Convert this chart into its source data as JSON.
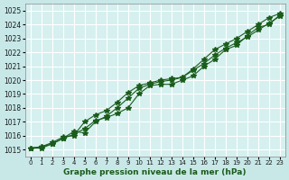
{
  "x": [
    0,
    1,
    2,
    3,
    4,
    5,
    6,
    7,
    8,
    9,
    10,
    11,
    12,
    13,
    14,
    15,
    16,
    17,
    18,
    19,
    20,
    21,
    22,
    23
  ],
  "line1": [
    1015.1,
    1015.1,
    1015.4,
    1015.8,
    1016.1,
    1016.5,
    1017.1,
    1017.3,
    1017.6,
    1018.0,
    1019.0,
    1019.6,
    1019.7,
    1019.7,
    1020.0,
    1020.3,
    1021.0,
    1021.5,
    1022.2,
    1022.5,
    1023.2,
    1023.8,
    1024.0,
    1024.7
  ],
  "line2": [
    1015.1,
    1015.2,
    1015.5,
    1015.9,
    1016.0,
    1017.0,
    1017.5,
    1017.8,
    1018.4,
    1019.1,
    1019.6,
    1019.8,
    1020.0,
    1020.1,
    1020.2,
    1020.8,
    1021.5,
    1022.2,
    1022.6,
    1023.0,
    1023.5,
    1024.0,
    1024.5,
    1024.8
  ],
  "line3": [
    1015.1,
    1015.2,
    1015.4,
    1015.8,
    1016.3,
    1016.2,
    1017.0,
    1017.4,
    1018.0,
    1018.7,
    1019.4,
    1019.7,
    1019.9,
    1020.0,
    1020.2,
    1020.7,
    1021.2,
    1021.8,
    1022.3,
    1022.7,
    1023.1,
    1023.6,
    1024.1,
    1024.6
  ],
  "line_color": "#1a5c1a",
  "marker": "*",
  "bg_plot": "#d6f0f0",
  "bg_fig": "#c8e8e8",
  "grid_color": "#ffffff",
  "xlabel": "Graphe pression niveau de la mer (hPa)",
  "xlabel_color": "#1a5c1a",
  "ytick_min": 1015,
  "ytick_max": 1025,
  "xtick_labels": [
    "0",
    "1",
    "2",
    "3",
    "4",
    "5",
    "6",
    "7",
    "8",
    "9",
    "10",
    "11",
    "12",
    "13",
    "14",
    "15",
    "16",
    "17",
    "18",
    "19",
    "20",
    "21",
    "22",
    "23"
  ],
  "ylim": [
    1014.5,
    1025.5
  ],
  "xlim": [
    -0.5,
    23.5
  ]
}
